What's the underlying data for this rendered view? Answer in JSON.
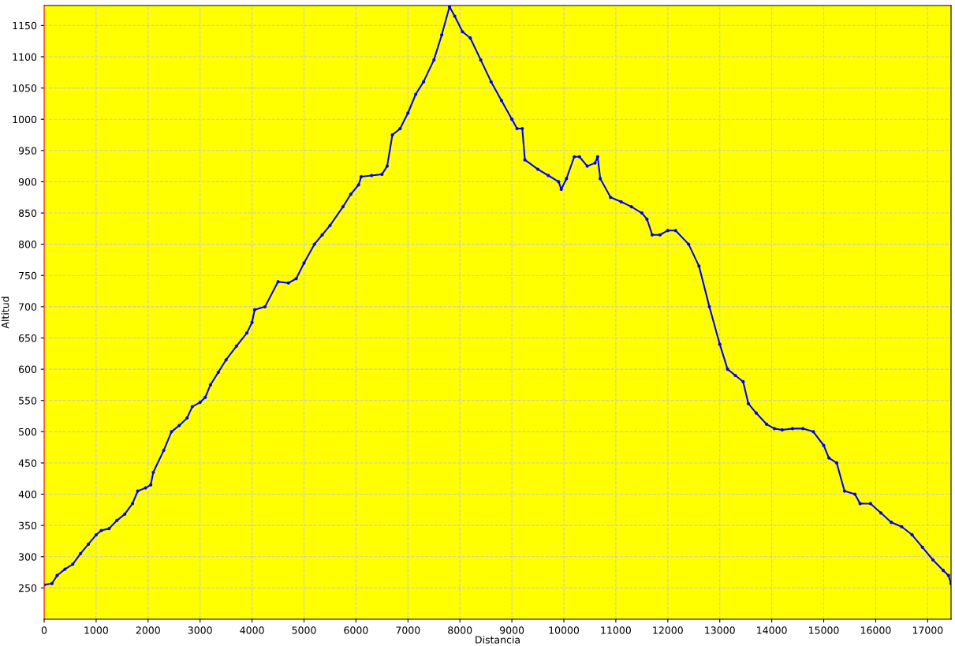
{
  "chart_data": {
    "type": "line",
    "xlabel": "Distancia",
    "ylabel": "Altitud",
    "xlim": [
      0,
      17450
    ],
    "ylim": [
      200,
      1182
    ],
    "xticks": [
      0,
      1000,
      2000,
      3000,
      4000,
      5000,
      6000,
      7000,
      8000,
      9000,
      10000,
      11000,
      12000,
      13000,
      14000,
      15000,
      16000,
      17000
    ],
    "yticks": [
      250,
      300,
      350,
      400,
      450,
      500,
      550,
      600,
      650,
      700,
      750,
      800,
      850,
      900,
      950,
      1000,
      1050,
      1100,
      1150
    ],
    "grid": true,
    "marker": "circle",
    "line_style": "solid",
    "series": [
      {
        "color": "#0000ff",
        "x": [
          0,
          150,
          250,
          400,
          550,
          700,
          850,
          1000,
          1100,
          1250,
          1400,
          1550,
          1700,
          1800,
          1950,
          2050,
          2100,
          2300,
          2450,
          2600,
          2750,
          2850,
          3000,
          3100,
          3200,
          3350,
          3500,
          3700,
          3900,
          4000,
          4050,
          4250,
          4500,
          4700,
          4850,
          5000,
          5200,
          5350,
          5500,
          5750,
          5900,
          6050,
          6100,
          6300,
          6500,
          6600,
          6700,
          6850,
          7000,
          7150,
          7300,
          7500,
          7650,
          7800,
          7900,
          8050,
          8200,
          8400,
          8600,
          8800,
          9000,
          9100,
          9200,
          9250,
          9500,
          9700,
          9900,
          9950,
          10050,
          10200,
          10300,
          10450,
          10600,
          10650,
          10700,
          10900,
          11100,
          11300,
          11500,
          11600,
          11700,
          11850,
          12000,
          12150,
          12400,
          12600,
          12800,
          13000,
          13150,
          13300,
          13450,
          13550,
          13700,
          13900,
          14050,
          14200,
          14400,
          14600,
          14800,
          15000,
          15100,
          15250,
          15400,
          15600,
          15700,
          15900,
          16100,
          16300,
          16500,
          16700,
          16900,
          17100,
          17300,
          17400,
          17450
        ],
        "values": [
          255,
          257,
          270,
          280,
          288,
          305,
          320,
          335,
          342,
          345,
          358,
          368,
          385,
          405,
          410,
          415,
          435,
          470,
          500,
          510,
          522,
          540,
          547,
          555,
          575,
          595,
          615,
          637,
          658,
          675,
          695,
          700,
          740,
          738,
          745,
          770,
          800,
          815,
          830,
          860,
          880,
          895,
          908,
          910,
          912,
          925,
          975,
          985,
          1010,
          1040,
          1060,
          1095,
          1135,
          1180,
          1165,
          1140,
          1130,
          1095,
          1060,
          1030,
          1000,
          985,
          985,
          935,
          920,
          910,
          900,
          888,
          905,
          940,
          940,
          925,
          930,
          940,
          905,
          875,
          868,
          860,
          850,
          840,
          815,
          815,
          822,
          822,
          800,
          765,
          700,
          640,
          600,
          590,
          580,
          545,
          530,
          512,
          505,
          503,
          505,
          505,
          500,
          478,
          458,
          450,
          405,
          400,
          385,
          385,
          370,
          355,
          348,
          335,
          315,
          295,
          278,
          270,
          257
        ]
      }
    ]
  }
}
